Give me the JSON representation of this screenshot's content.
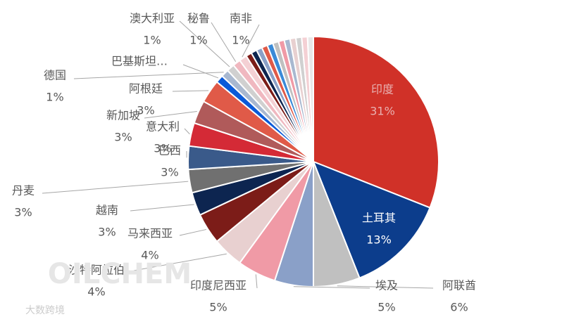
{
  "chart_data": {
    "type": "pie",
    "categories": [
      "印度",
      "土耳其",
      "阿联酋",
      "埃及",
      "印度尼西亚",
      "沙特阿拉伯",
      "马来西亚",
      "越南",
      "丹麦",
      "巴西",
      "意大利",
      "新加坡",
      "阿根廷",
      "巴基斯坦…",
      "德国",
      "澳大利亚",
      "秘鲁",
      "南非",
      null,
      null,
      null,
      null,
      null,
      null,
      null,
      null,
      null,
      null,
      null,
      null
    ],
    "values": [
      31,
      13,
      6,
      5,
      5,
      4,
      4,
      3,
      3,
      3,
      3,
      3,
      3,
      1,
      1,
      1,
      1,
      1,
      0.75,
      0.75,
      0.75,
      0.75,
      0.75,
      0.75,
      0.75,
      0.75,
      0.75,
      0.75,
      0.75,
      0.75
    ],
    "value_labels": [
      "31%",
      "13%",
      "6%",
      "5%",
      "5%",
      "4%",
      "4%",
      "3%",
      "3%",
      "3%",
      "3%",
      "3%",
      "3%",
      null,
      "1%",
      "1%",
      "1%",
      "1%",
      null,
      null,
      null,
      null,
      null,
      null,
      null,
      null,
      null,
      null,
      null,
      null
    ],
    "colors": [
      "#d03128",
      "#0c3d8c",
      "#c0c0c0",
      "#8aa0c8",
      "#f09aa6",
      "#e8d0d0",
      "#7c1c18",
      "#0d2550",
      "#707070",
      "#3a5a8a",
      "#d42a36",
      "#b05a5a",
      "#e05a48",
      "#0a5ad8",
      "#a8b8d0",
      "#d0d0d0",
      "#f0b8c0",
      "#f4d0d4",
      "#7c1c18",
      "#0d2550",
      "#8aa0c8",
      "#e05a48",
      "#3a8ad8",
      "#c0c0c0",
      "#f09aa6",
      "#a8b8d0",
      "#e8d0d0",
      "#d0d0d0",
      "#f4d0d4",
      "#e8e8e8"
    ]
  },
  "watermark": [
    "OILCHEM",
    "大数跨境"
  ]
}
